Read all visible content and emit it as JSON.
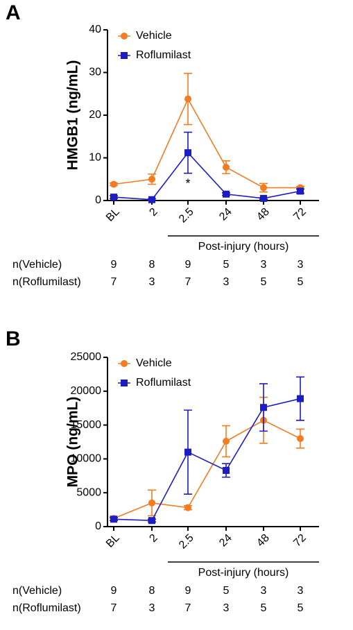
{
  "chart_data": [
    {
      "type": "line",
      "panel_label": "A",
      "ylabel": "HMGB1 (ng/mL)",
      "xlabel": "Post-injury (hours)",
      "categories": [
        "BL",
        "2",
        "2.5",
        "24",
        "48",
        "72"
      ],
      "ylim": [
        0,
        40
      ],
      "yticks": [
        0,
        10,
        20,
        30,
        40
      ],
      "series": [
        {
          "name": "Vehicle",
          "color": "#f47b20",
          "marker": "circle",
          "values": [
            3.8,
            5,
            23.8,
            7.8,
            3,
            3
          ],
          "errors": [
            0.3,
            1.2,
            6,
            1.5,
            1,
            0.3
          ]
        },
        {
          "name": "Roflumilast",
          "color": "#1c1cc4",
          "marker": "square",
          "values": [
            0.8,
            0.2,
            11.2,
            1.5,
            0.5,
            2.2
          ],
          "errors": [
            0.3,
            0.2,
            4.8,
            0.3,
            0.2,
            0.5
          ]
        }
      ],
      "annotations": [
        {
          "text": "*",
          "x": "2.5"
        }
      ],
      "n_rows": [
        {
          "label": "n(Vehicle)",
          "values": [
            9,
            8,
            9,
            5,
            3,
            3
          ]
        },
        {
          "label": "n(Roflumilast)",
          "values": [
            7,
            3,
            7,
            3,
            5,
            5
          ]
        }
      ]
    },
    {
      "type": "line",
      "panel_label": "B",
      "ylabel": "MPO (ng/mL)",
      "xlabel": "Post-injury (hours)",
      "categories": [
        "BL",
        "2",
        "2.5",
        "24",
        "48",
        "72"
      ],
      "ylim": [
        0,
        25000
      ],
      "yticks": [
        0,
        5000,
        10000,
        15000,
        20000,
        25000
      ],
      "series": [
        {
          "name": "Vehicle",
          "color": "#f47b20",
          "marker": "circle",
          "values": [
            1200,
            3500,
            2800,
            12600,
            15700,
            13000
          ],
          "errors": [
            300,
            1900,
            300,
            2300,
            3400,
            1400
          ]
        },
        {
          "name": "Roflumilast",
          "color": "#1c1cc4",
          "marker": "square",
          "values": [
            1100,
            900,
            11000,
            8300,
            17600,
            18900
          ],
          "errors": [
            200,
            200,
            6200,
            1000,
            3500,
            3200
          ]
        }
      ],
      "annotations": [],
      "n_rows": [
        {
          "label": "n(Vehicle)",
          "values": [
            9,
            8,
            9,
            5,
            3,
            3
          ]
        },
        {
          "label": "n(Roflumilast)",
          "values": [
            7,
            3,
            7,
            3,
            5,
            5
          ]
        }
      ]
    }
  ]
}
